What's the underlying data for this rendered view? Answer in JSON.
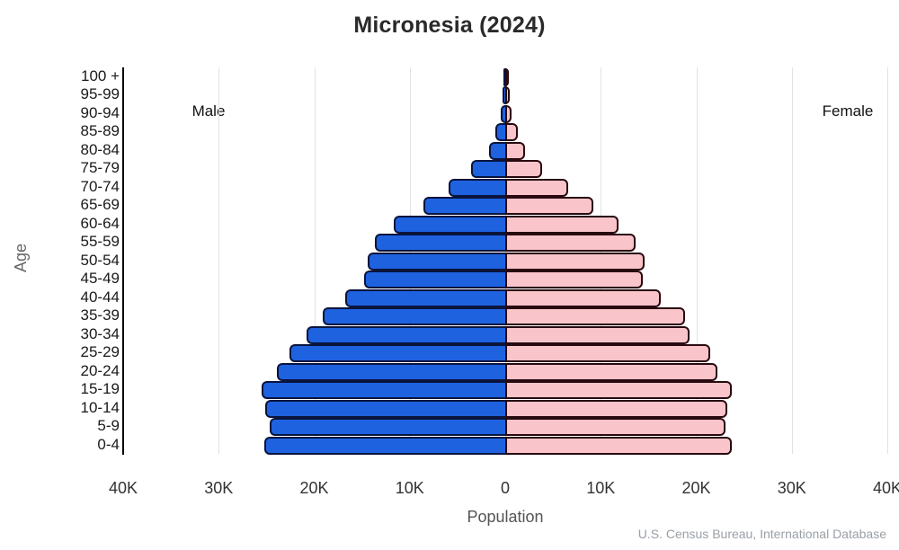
{
  "title": "Micronesia (2024)",
  "labels": {
    "male": "Male",
    "female": "Female",
    "age_axis": "Age",
    "population_axis": "Population",
    "source": "U.S. Census Bureau, International Database"
  },
  "colors": {
    "male_fill": "#1e62e0",
    "male_border": "#0a143c",
    "female_fill": "#f9c4ca",
    "female_border": "#280a0f",
    "gridline": "#e2e2e2",
    "axis_line": "#000000"
  },
  "chart_data": {
    "type": "bar",
    "subtype": "population-pyramid",
    "title": "Micronesia (2024)",
    "xlabel": "Population",
    "ylabel": "Age",
    "x_tick_labels": [
      "40K",
      "30K",
      "20K",
      "10K",
      "0",
      "10K",
      "20K",
      "30K",
      "40K"
    ],
    "x_tick_values_thousands": [
      -40,
      -30,
      -20,
      -10,
      0,
      10,
      20,
      30,
      40
    ],
    "xlim_thousands": [
      -40,
      40
    ],
    "grid": true,
    "age_groups_top_to_bottom": [
      "100 +",
      "95-99",
      "90-94",
      "85-89",
      "80-84",
      "75-79",
      "70-74",
      "65-69",
      "60-64",
      "55-59",
      "50-54",
      "45-49",
      "40-44",
      "35-39",
      "30-34",
      "25-29",
      "20-24",
      "15-19",
      "10-14",
      "5-9",
      "0-4"
    ],
    "series": [
      {
        "name": "Male",
        "side": "left",
        "values_thousands": [
          0.02,
          0.06,
          0.25,
          0.85,
          1.5,
          3.4,
          5.7,
          8.4,
          11.5,
          13.5,
          14.2,
          14.6,
          16.6,
          18.9,
          20.6,
          22.4,
          23.7,
          25.3,
          24.9,
          24.5,
          25.0
        ]
      },
      {
        "name": "Female",
        "side": "right",
        "values_thousands": [
          0.03,
          0.08,
          0.3,
          0.95,
          1.7,
          3.5,
          6.2,
          8.8,
          11.5,
          13.3,
          14.2,
          14.0,
          15.9,
          18.4,
          18.9,
          21.1,
          21.8,
          23.3,
          22.9,
          22.7,
          23.3
        ]
      }
    ]
  }
}
